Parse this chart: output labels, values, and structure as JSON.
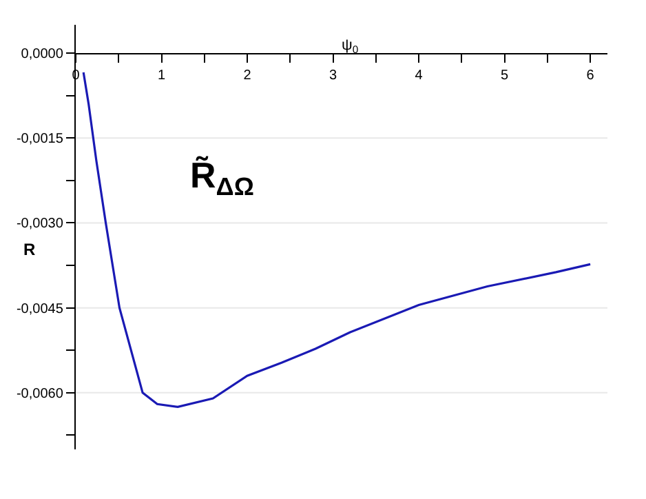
{
  "chart_data": {
    "type": "line",
    "xlabel": "ψ$_{0}$",
    "ylabel": "R",
    "annotations": [
      "R̃$_{ΔΩ}$"
    ],
    "x": [
      0.09,
      0.15,
      0.24,
      0.35,
      0.51,
      0.78,
      0.95,
      1.19,
      1.6,
      2.0,
      2.4,
      2.8,
      3.2,
      4.0,
      4.8,
      5.6,
      6.0
    ],
    "series": [
      {
        "color": "#1a1ab4",
        "values": [
          -0.00034,
          -0.0009,
          -0.0019,
          -0.003,
          -0.0045,
          -0.006,
          -0.0062,
          -0.00625,
          -0.0061,
          -0.0057,
          -0.00547,
          -0.00522,
          -0.00493,
          -0.00445,
          -0.00412,
          -0.00387,
          -0.00373
        ]
      }
    ],
    "xlim": [
      0,
      6.2
    ],
    "ylim": [
      -0.007,
      0.0005
    ],
    "xticks": [
      0,
      {
        "value": 0.5,
        "label": null
      },
      1,
      {
        "value": 1.5,
        "label": null
      },
      2,
      {
        "value": 2.5,
        "label": null
      },
      3,
      {
        "value": 3.5,
        "label": null
      },
      4,
      {
        "value": 4.5,
        "label": null
      },
      5,
      {
        "value": 5.5,
        "label": null
      },
      6
    ],
    "yticks": [
      {
        "value": 0,
        "label": "0,0000"
      },
      {
        "value": -0.00075,
        "label": null
      },
      {
        "value": -0.0015,
        "label": "-0,0015"
      },
      {
        "value": -0.00225,
        "label": null
      },
      {
        "value": -0.003,
        "label": "-0,0030"
      },
      {
        "value": -0.00375,
        "label": null
      },
      {
        "value": -0.0045,
        "label": "-0,0045"
      },
      {
        "value": -0.00525,
        "label": null
      },
      {
        "value": -0.006,
        "label": "-0,0060"
      },
      {
        "value": -0.00675,
        "label": null
      }
    ],
    "grid": "y",
    "legend": false,
    "marker": "none",
    "line_style": "solid"
  }
}
